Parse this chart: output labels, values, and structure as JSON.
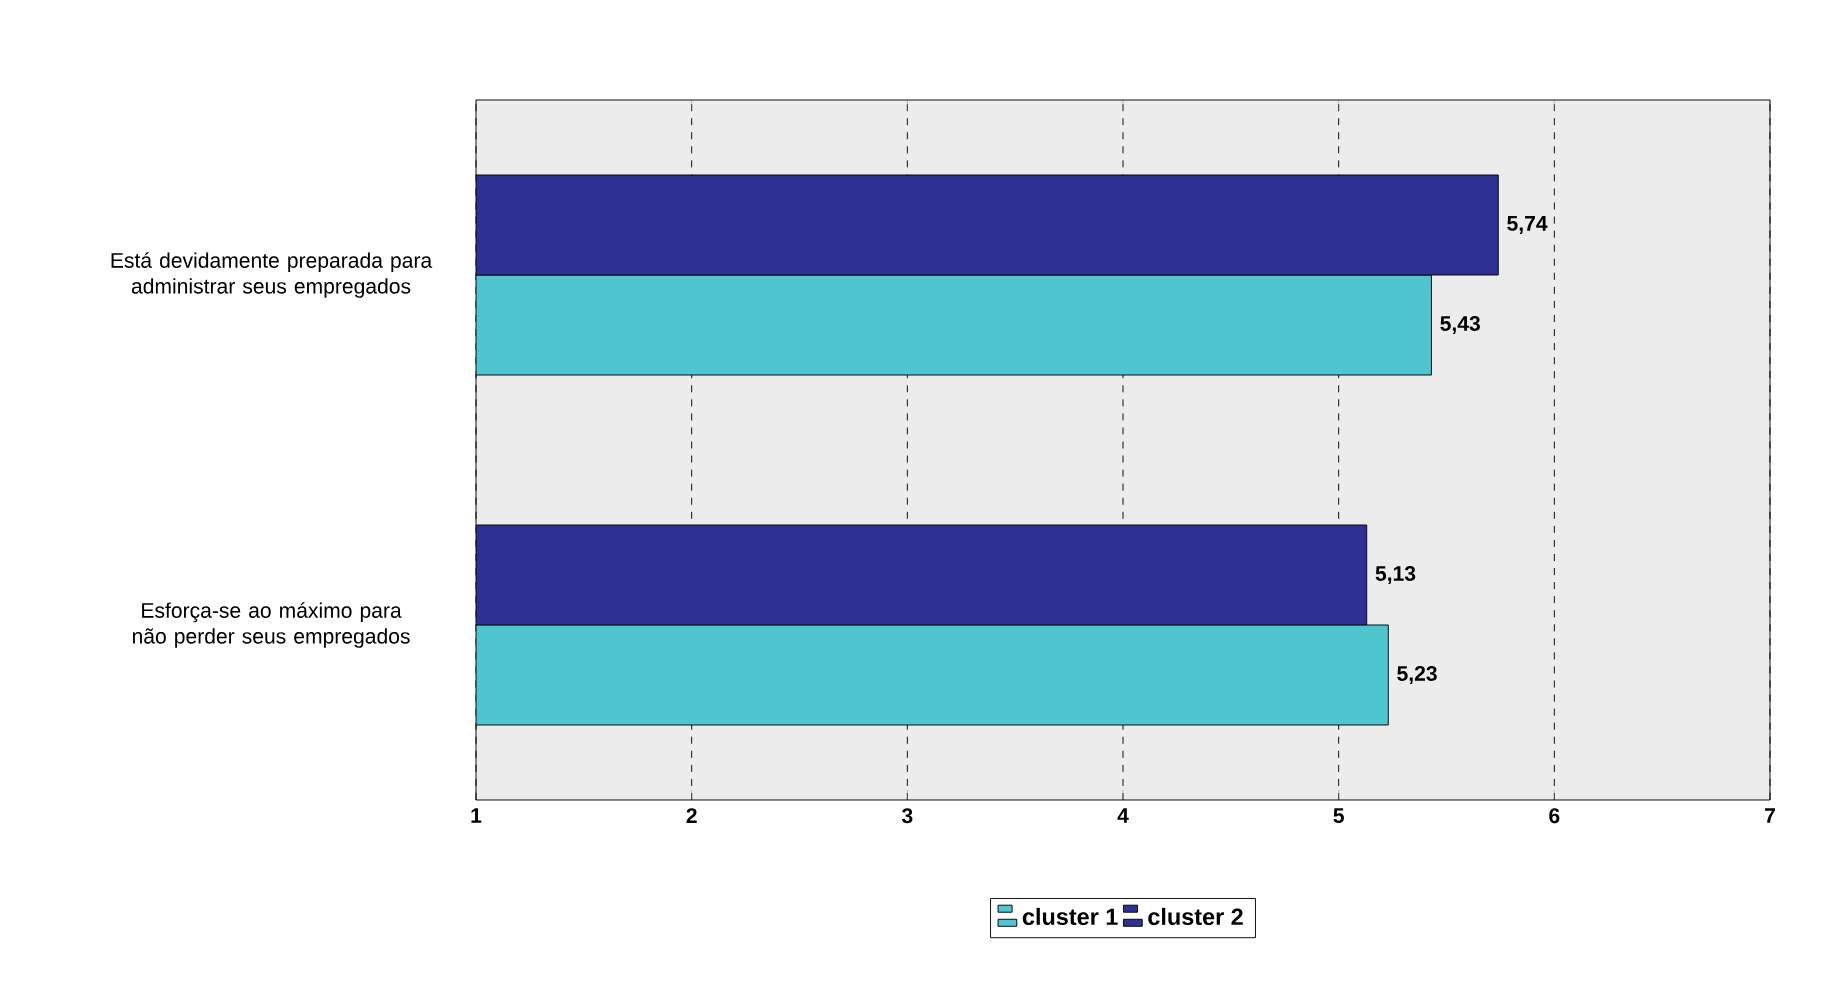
{
  "chart_data": {
    "type": "bar",
    "orientation": "horizontal",
    "categories": [
      "Está devidamente preparada para administrar seus empregados",
      "Esforça-se ao máximo para não perder seus empregados"
    ],
    "series": [
      {
        "name": "cluster 1",
        "color": "#4fc6cf",
        "values": [
          5.43,
          5.23
        ],
        "value_labels": [
          "5,43",
          "5,23"
        ]
      },
      {
        "name": "cluster 2",
        "color": "#2e3192",
        "values": [
          5.74,
          5.13
        ],
        "value_labels": [
          "5,74",
          "5,13"
        ]
      }
    ],
    "xlim": [
      1,
      7
    ],
    "xticks": [
      1,
      2,
      3,
      4,
      5,
      6,
      7
    ],
    "grid": "x",
    "legend": "bottom"
  }
}
